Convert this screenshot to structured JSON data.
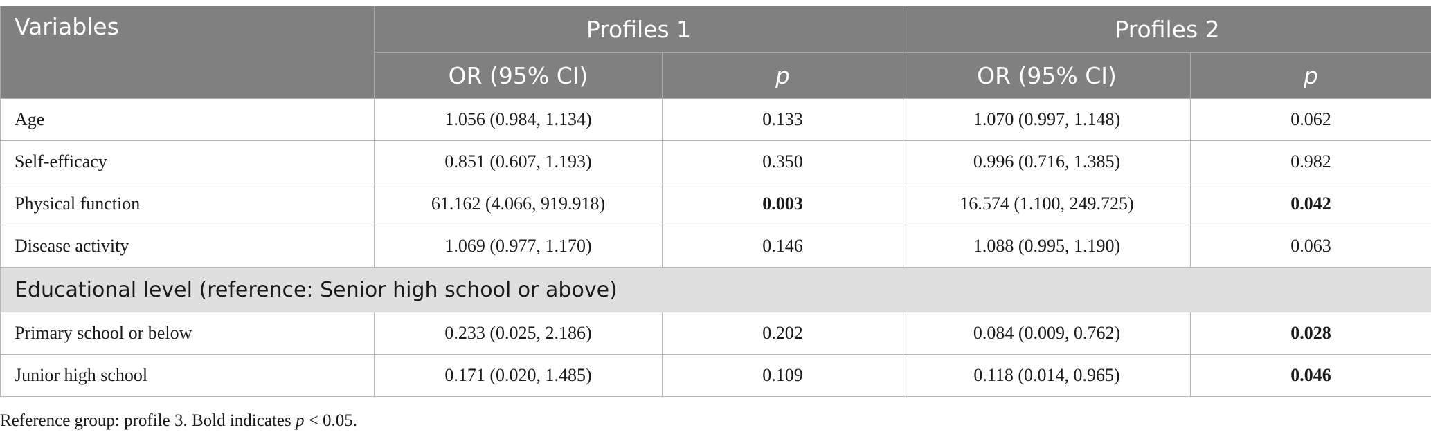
{
  "header": {
    "variables": "Variables",
    "group1": "Profiles 1",
    "group2": "Profiles 2",
    "or_label": "OR (95% CI)",
    "p_label": "p"
  },
  "rows": [
    {
      "label": "Age",
      "or1": "1.056 (0.984, 1.134)",
      "p1": "0.133",
      "or2": "1.070 (0.997, 1.148)",
      "p2": "0.062"
    },
    {
      "label": "Self-efficacy",
      "or1": "0.851 (0.607, 1.193)",
      "p1": "0.350",
      "or2": "0.996 (0.716, 1.385)",
      "p2": "0.982"
    },
    {
      "label": "Physical function",
      "or1": "61.162 (4.066, 919.918)",
      "p1": "0.003",
      "or2": "16.574 (1.100, 249.725)",
      "p2": "0.042"
    },
    {
      "label": "Disease activity",
      "or1": "1.069 (0.977, 1.170)",
      "p1": "0.146",
      "or2": "1.088 (0.995, 1.190)",
      "p2": "0.063"
    }
  ],
  "section": {
    "label": "Educational level (reference: Senior high school or above)",
    "rows": [
      {
        "label": "Primary school or below",
        "or1": "0.233 (0.025, 2.186)",
        "p1": "0.202",
        "or2": "0.084 (0.009, 0.762)",
        "p2": "0.028"
      },
      {
        "label": "Junior high school",
        "or1": "0.171 (0.020, 1.485)",
        "p1": "0.109",
        "or2": "0.118 (0.014, 0.965)",
        "p2": "0.046"
      }
    ]
  },
  "footnote": {
    "prefix": "Reference group: profile 3. Bold indicates ",
    "p": "p",
    "suffix": " < 0.05."
  }
}
